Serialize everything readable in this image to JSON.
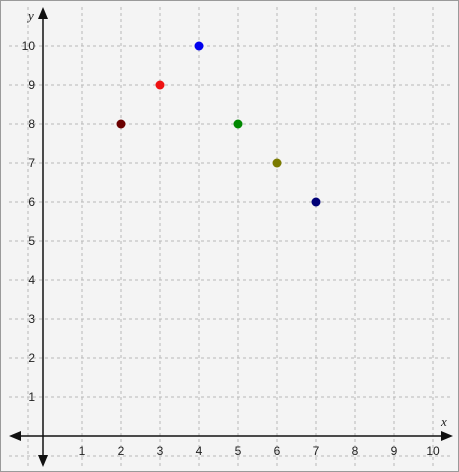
{
  "chart_data": {
    "type": "scatter",
    "title": "",
    "xlabel": "x",
    "ylabel": "y",
    "xlim": [
      -1,
      10.5
    ],
    "ylim": [
      -1,
      10.5
    ],
    "grid": true,
    "x_ticks": [
      1,
      2,
      3,
      4,
      5,
      6,
      7,
      8,
      9,
      10
    ],
    "y_ticks": [
      1,
      2,
      3,
      4,
      5,
      6,
      7,
      8,
      9,
      10
    ],
    "points": [
      {
        "x": 2,
        "y": 8,
        "color": "#6b0000"
      },
      {
        "x": 3,
        "y": 9,
        "color": "#ee1111"
      },
      {
        "x": 4,
        "y": 10,
        "color": "#0000ee"
      },
      {
        "x": 5,
        "y": 8,
        "color": "#008800"
      },
      {
        "x": 6,
        "y": 7,
        "color": "#7b7b00"
      },
      {
        "x": 7,
        "y": 6,
        "color": "#000077"
      }
    ]
  }
}
